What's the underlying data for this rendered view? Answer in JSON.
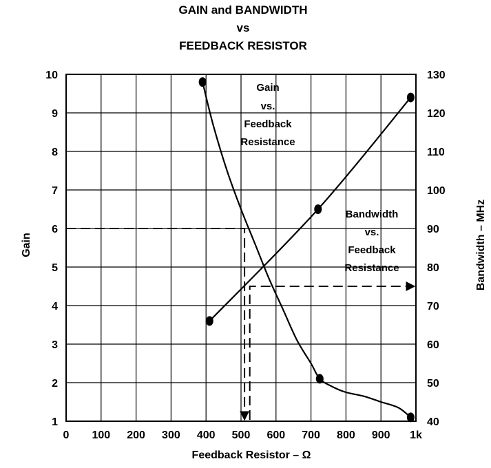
{
  "chart_data": {
    "type": "line",
    "title": [
      "GAIN and BANDWIDTH",
      "vs",
      "FEEDBACK RESISTOR"
    ],
    "xlabel": "Feedback Resistor – Ω",
    "ylabel_left": "Gain",
    "ylabel_right": "Bandwidth – MHz",
    "xlim": [
      0,
      1000
    ],
    "ylim_left": [
      1,
      10
    ],
    "ylim_right": [
      40,
      130
    ],
    "x_ticks": [
      "0",
      "100",
      "200",
      "300",
      "400",
      "500",
      "600",
      "700",
      "800",
      "900",
      "1k"
    ],
    "y_left_ticks": [
      "1",
      "2",
      "3",
      "4",
      "5",
      "6",
      "7",
      "8",
      "9",
      "10"
    ],
    "y_right_ticks": [
      "40",
      "50",
      "60",
      "70",
      "80",
      "90",
      "100",
      "110",
      "120",
      "130"
    ],
    "grid": true,
    "series": [
      {
        "axis": "left",
        "x": [
          390,
          420,
          460,
          500,
          540,
          580,
          620,
          660,
          700,
          725,
          760,
          800,
          850,
          900,
          950,
          985
        ],
        "y": [
          9.8,
          8.7,
          7.5,
          6.5,
          5.6,
          4.7,
          3.9,
          3.1,
          2.5,
          2.1,
          1.9,
          1.75,
          1.65,
          1.5,
          1.35,
          1.1
        ],
        "markers_x": [
          390,
          725,
          985
        ],
        "markers_y": [
          9.8,
          2.1,
          1.1
        ]
      },
      {
        "axis": "right",
        "x": [
          410,
          720,
          985
        ],
        "y": [
          66,
          95,
          124
        ],
        "markers_x": [
          410,
          720,
          985
        ],
        "markers_y": [
          66,
          95,
          124
        ]
      }
    ],
    "annotations": [
      {
        "lines": [
          "Gain",
          "vs.",
          "Feedback",
          "Resistance"
        ]
      },
      {
        "lines": [
          "Bandwidth",
          "vs.",
          "Feedback",
          "Resistance"
        ]
      }
    ],
    "guides": [
      {
        "from": [
          0,
          6
        ],
        "to": [
          510,
          6
        ],
        "then_down_to": 1,
        "axis": "left"
      },
      {
        "from_x": 525,
        "from_y": 1,
        "up_to": 75,
        "then_right_to": 1000,
        "axis": "right"
      }
    ]
  }
}
